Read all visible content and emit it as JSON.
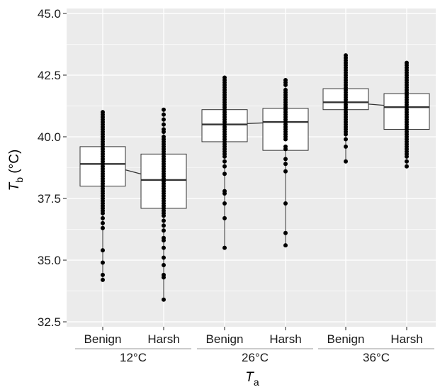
{
  "chart_data": {
    "type": "box",
    "xlabel": "T",
    "xlabel_sub": "a",
    "ylabel": "T",
    "ylabel_sub": "b",
    "ylabel_unit": " (°C)",
    "ylim": [
      32.3,
      45.2
    ],
    "yticks": [
      32.5,
      35.0,
      37.5,
      40.0,
      42.5,
      45.0
    ],
    "ytick_labels": [
      "32.5",
      "35.0",
      "37.5",
      "40.0",
      "42.5",
      "45.0"
    ],
    "groups": [
      {
        "label": "12°C",
        "conditions": [
          {
            "label": "Benign",
            "q1": 38.0,
            "median": 38.9,
            "q3": 39.6,
            "points": [
              41.0,
              40.9,
              40.8,
              40.7,
              40.6,
              40.5,
              40.4,
              40.3,
              40.2,
              40.1,
              40.0,
              39.9,
              39.8,
              39.7,
              39.6,
              39.5,
              39.4,
              39.3,
              39.2,
              39.1,
              39.0,
              38.9,
              38.8,
              38.7,
              38.6,
              38.5,
              38.4,
              38.3,
              38.2,
              38.1,
              38.0,
              37.9,
              37.8,
              37.7,
              37.6,
              37.5,
              37.4,
              37.3,
              37.2,
              37.1,
              37.0,
              36.9,
              36.7,
              36.5,
              36.3,
              35.4,
              34.9,
              34.4,
              34.2
            ]
          },
          {
            "label": "Harsh",
            "q1": 37.1,
            "median": 38.25,
            "q3": 39.3,
            "points": [
              41.1,
              40.9,
              40.7,
              40.5,
              40.3,
              40.2,
              40.0,
              39.9,
              39.8,
              39.7,
              39.6,
              39.5,
              39.4,
              39.3,
              39.2,
              39.1,
              39.0,
              38.9,
              38.8,
              38.7,
              38.6,
              38.5,
              38.4,
              38.3,
              38.2,
              38.1,
              38.0,
              37.9,
              37.8,
              37.7,
              37.6,
              37.5,
              37.4,
              37.3,
              37.2,
              37.1,
              37.0,
              36.9,
              36.8,
              36.6,
              36.4,
              36.2,
              35.9,
              35.8,
              35.5,
              35.1,
              34.8,
              34.4,
              34.3,
              33.4
            ]
          }
        ]
      },
      {
        "label": "26°C",
        "conditions": [
          {
            "label": "Benign",
            "q1": 39.8,
            "median": 40.5,
            "q3": 41.1,
            "points": [
              42.4,
              42.3,
              42.2,
              42.1,
              42.0,
              41.9,
              41.8,
              41.7,
              41.6,
              41.5,
              41.4,
              41.3,
              41.2,
              41.1,
              41.0,
              40.9,
              40.8,
              40.7,
              40.6,
              40.5,
              40.4,
              40.3,
              40.2,
              40.1,
              40.0,
              39.9,
              39.8,
              39.7,
              39.6,
              39.5,
              39.4,
              39.3,
              39.2,
              39.0,
              38.8,
              38.5,
              37.8,
              37.7,
              37.3,
              36.7,
              35.5
            ]
          },
          {
            "label": "Harsh",
            "q1": 39.45,
            "median": 40.6,
            "q3": 41.15,
            "points": [
              42.3,
              42.2,
              42.1,
              41.9,
              41.8,
              41.7,
              41.6,
              41.5,
              41.4,
              41.3,
              41.2,
              41.1,
              41.0,
              40.9,
              40.8,
              40.7,
              40.6,
              40.5,
              40.4,
              40.3,
              40.2,
              40.1,
              40.0,
              39.9,
              39.6,
              39.5,
              39.1,
              38.9,
              38.6,
              37.3,
              36.1,
              35.6
            ]
          }
        ]
      },
      {
        "label": "36°C",
        "conditions": [
          {
            "label": "Benign",
            "q1": 41.1,
            "median": 41.4,
            "q3": 41.95,
            "points": [
              43.3,
              43.2,
              43.1,
              43.0,
              42.9,
              42.8,
              42.7,
              42.6,
              42.5,
              42.4,
              42.3,
              42.2,
              42.1,
              42.0,
              41.9,
              41.8,
              41.7,
              41.6,
              41.5,
              41.4,
              41.3,
              41.2,
              41.1,
              41.0,
              40.9,
              40.8,
              40.7,
              40.6,
              40.5,
              40.4,
              40.3,
              40.2,
              40.1,
              39.9,
              39.6,
              39.0
            ]
          },
          {
            "label": "Harsh",
            "q1": 40.3,
            "median": 41.2,
            "q3": 41.75,
            "points": [
              43.0,
              42.9,
              42.8,
              42.7,
              42.6,
              42.5,
              42.4,
              42.3,
              42.2,
              42.1,
              42.0,
              41.9,
              41.8,
              41.7,
              41.6,
              41.5,
              41.4,
              41.3,
              41.2,
              41.1,
              41.0,
              40.9,
              40.8,
              40.7,
              40.6,
              40.5,
              40.4,
              40.3,
              40.2,
              40.1,
              40.0,
              39.9,
              39.8,
              39.7,
              39.6,
              39.5,
              39.4,
              39.3,
              39.2,
              39.0,
              38.8
            ]
          }
        ]
      }
    ],
    "grid": true,
    "colors": {
      "panel": "#ebebeb",
      "grid": "#ffffff",
      "box_fill": "#ffffff",
      "box_stroke": "#333333",
      "points": "#000000",
      "median_line": "#333333"
    }
  }
}
